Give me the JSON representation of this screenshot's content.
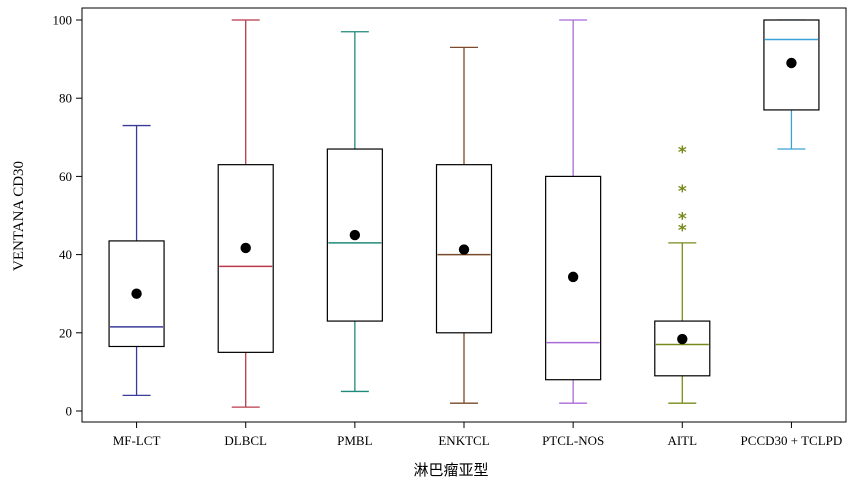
{
  "chart_data": {
    "type": "boxplot",
    "title": "",
    "xlabel": "淋巴瘤亚型",
    "ylabel": "VENTANA CD30",
    "ylim": [
      0,
      100
    ],
    "yticks": [
      0,
      20,
      40,
      60,
      80,
      100
    ],
    "grid": false,
    "legend": "none",
    "categories": [
      "MF-LCT",
      "DLBCL",
      "PMBL",
      "ENKTCL",
      "PTCL-NOS",
      "AITL",
      "PCCD30 + TCLPD"
    ],
    "boxes": [
      {
        "category": "MF-LCT",
        "color": "#3a3a9a",
        "min": 4,
        "q1": 16.5,
        "median": 21.5,
        "q3": 43.5,
        "max": 73,
        "mean": 30,
        "outliers": []
      },
      {
        "category": "DLBCL",
        "color": "#b83a4a",
        "min": 1,
        "q1": 15,
        "median": 37,
        "q3": 63,
        "max": 100,
        "mean": 41.7,
        "outliers": []
      },
      {
        "category": "PMBL",
        "color": "#1f8a7a",
        "min": 5,
        "q1": 23,
        "median": 43,
        "q3": 67,
        "max": 97,
        "mean": 45,
        "outliers": []
      },
      {
        "category": "ENKTCL",
        "color": "#7a4a2a",
        "min": 2,
        "q1": 20,
        "median": 40,
        "q3": 63,
        "max": 93,
        "mean": 41.3,
        "outliers": []
      },
      {
        "category": "PTCL-NOS",
        "color": "#a86ad8",
        "min": 2,
        "q1": 8,
        "median": 17.5,
        "q3": 60,
        "max": 100,
        "mean": 34.3,
        "outliers": []
      },
      {
        "category": "AITL",
        "color": "#7a8a1a",
        "min": 2,
        "q1": 9,
        "median": 17,
        "q3": 23,
        "max": 43,
        "mean": 18.4,
        "outliers": [
          47,
          50,
          57,
          67
        ]
      },
      {
        "category": "PCCD30 + TCLPD",
        "color": "#3aa0d8",
        "min": 67,
        "q1": 77,
        "median": 95,
        "q3": 100,
        "max": 100,
        "mean": 89,
        "outliers": []
      }
    ]
  }
}
